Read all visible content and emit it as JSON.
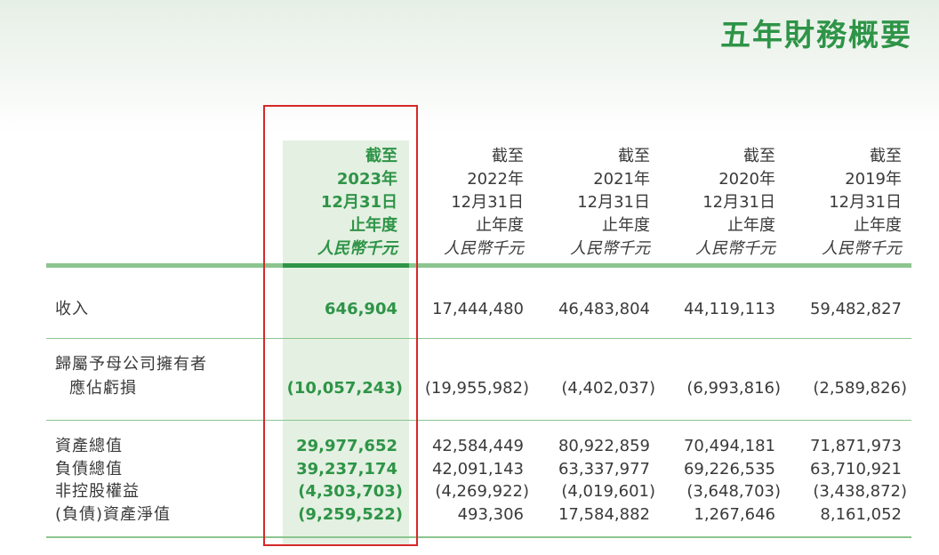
{
  "header": {
    "title": "五年財務概要"
  },
  "table": {
    "columns": [
      [
        "截至",
        "2023年",
        "12月31日",
        "止年度",
        "人民幣千元"
      ],
      [
        "截至",
        "2022年",
        "12月31日",
        "止年度",
        "人民幣千元"
      ],
      [
        "截至",
        "2021年",
        "12月31日",
        "止年度",
        "人民幣千元"
      ],
      [
        "截至",
        "2020年",
        "12月31日",
        "止年度",
        "人民幣千元"
      ],
      [
        "截至",
        "2019年",
        "12月31日",
        "止年度",
        "人民幣千元"
      ]
    ],
    "rows": [
      {
        "label": [
          "收入"
        ],
        "values": [
          "646,904",
          "17,444,480",
          "46,483,804",
          "44,119,113",
          "59,482,827"
        ]
      },
      {
        "label": [
          "歸屬予母公司擁有者",
          "應佔虧損"
        ],
        "values": [
          "(10,057,243)",
          "(19,955,982)",
          "(4,402,037)",
          "(6,993,816)",
          "(2,589,826)"
        ]
      },
      {
        "label": [
          "資產總值"
        ],
        "values": [
          "29,977,652",
          "42,584,449",
          "80,922,859",
          "70,494,181",
          "71,871,973"
        ]
      },
      {
        "label": [
          "負債總值"
        ],
        "values": [
          "39,237,174",
          "42,091,143",
          "63,337,977",
          "69,226,535",
          "63,710,921"
        ]
      },
      {
        "label": [
          "非控股權益"
        ],
        "values": [
          "(4,303,703)",
          "(4,269,922)",
          "(4,019,601)",
          "(3,648,703)",
          "(3,438,872)"
        ]
      },
      {
        "label": [
          "(負債)資產淨值"
        ],
        "values": [
          "(9,259,522)",
          "493,306",
          "17,584,882",
          "1,267,646",
          "8,161,052"
        ]
      }
    ]
  }
}
